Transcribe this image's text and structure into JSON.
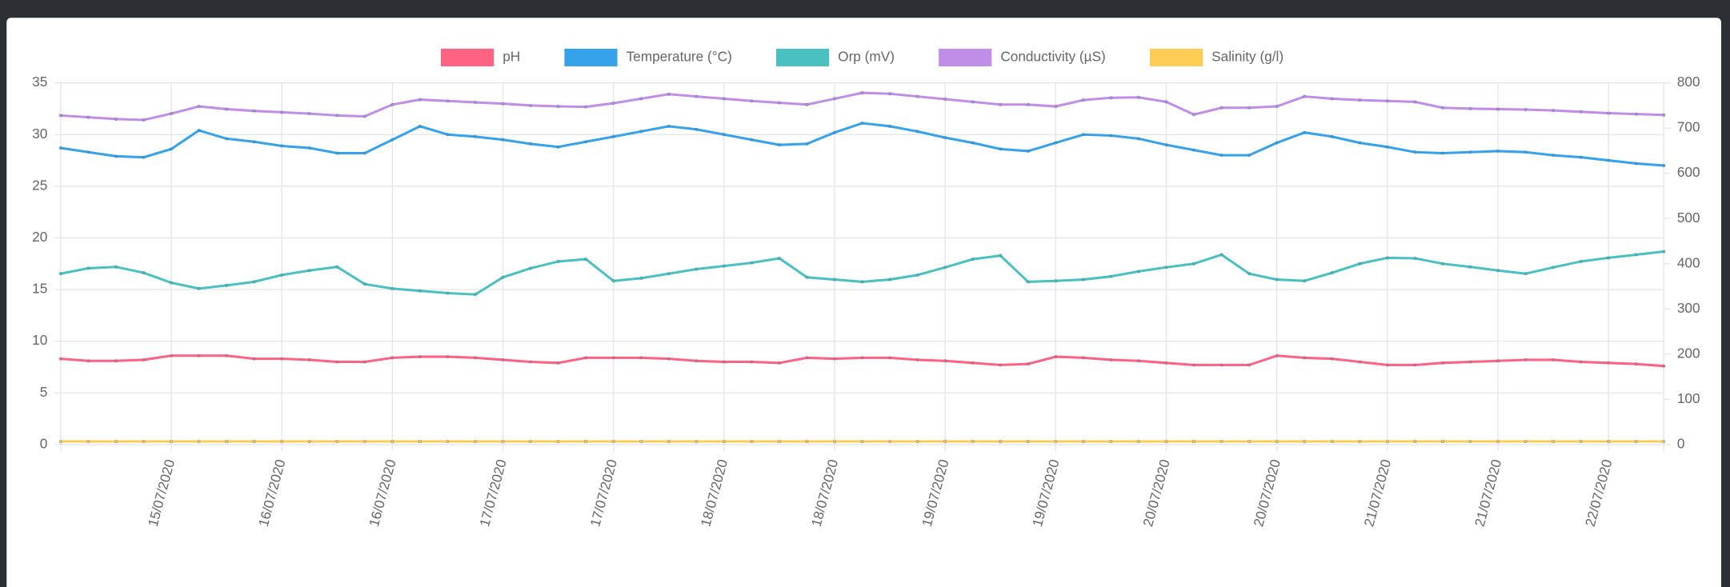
{
  "chart_data": {
    "type": "line",
    "legend": "top",
    "grid": true,
    "categories": [
      null,
      null,
      null,
      null,
      "15/07/2020",
      null,
      null,
      null,
      "16/07/2020",
      null,
      null,
      null,
      "16/07/2020",
      null,
      null,
      null,
      "17/07/2020",
      null,
      null,
      null,
      "17/07/2020",
      null,
      null,
      null,
      "18/07/2020",
      null,
      null,
      null,
      "18/07/2020",
      null,
      null,
      null,
      "19/07/2020",
      null,
      null,
      null,
      "19/07/2020",
      null,
      null,
      null,
      "20/07/2020",
      null,
      null,
      null,
      "20/07/2020",
      null,
      null,
      null,
      "21/07/2020",
      null,
      null,
      null,
      "21/07/2020",
      null,
      null,
      null,
      "22/07/2020",
      null,
      null
    ],
    "ylim": [
      0,
      35
    ],
    "yticks": [
      0,
      5,
      10,
      15,
      20,
      25,
      30,
      35
    ],
    "y2lim": [
      0,
      800
    ],
    "y2ticks": [
      0,
      100,
      200,
      300,
      400,
      500,
      600,
      700,
      800
    ],
    "series": [
      {
        "name": "pH",
        "color": "#ff6384",
        "values": [
          8.3,
          8.1,
          8.1,
          8.2,
          8.6,
          8.6,
          8.6,
          8.3,
          8.3,
          8.2,
          8.0,
          8.0,
          8.4,
          8.5,
          8.5,
          8.4,
          8.2,
          8.0,
          7.9,
          8.4,
          8.4,
          8.4,
          8.3,
          8.1,
          8.0,
          8.0,
          7.9,
          8.4,
          8.3,
          8.4,
          8.4,
          8.2,
          8.1,
          7.9,
          7.7,
          7.8,
          8.5,
          8.4,
          8.2,
          8.1,
          7.9,
          7.7,
          7.7,
          7.7,
          8.6,
          8.4,
          8.3,
          8.0,
          7.7,
          7.7,
          7.9,
          8.0,
          8.1,
          8.2,
          8.2,
          8.0,
          7.9,
          7.8,
          7.6
        ]
      },
      {
        "name": "Temperature (°C)",
        "color": "#36a2eb",
        "values": [
          28.7,
          28.3,
          27.9,
          27.8,
          28.6,
          30.4,
          29.6,
          29.3,
          28.9,
          28.7,
          28.2,
          28.2,
          29.5,
          30.8,
          30.0,
          29.8,
          29.5,
          29.1,
          28.8,
          29.3,
          29.8,
          30.3,
          30.8,
          30.5,
          30.0,
          29.5,
          29.0,
          29.1,
          30.2,
          31.1,
          30.8,
          30.3,
          29.7,
          29.2,
          28.6,
          28.4,
          29.2,
          30.0,
          29.9,
          29.6,
          29.0,
          28.5,
          28.0,
          28.0,
          29.2,
          30.2,
          29.8,
          29.2,
          28.8,
          28.3,
          28.2,
          28.3,
          28.4,
          28.3,
          28.0,
          27.8,
          27.5,
          27.2,
          27.0
        ]
      },
      {
        "name": "Orp (mV)",
        "color": "#4bc0c0",
        "axis": "y2",
        "values": [
          378,
          390,
          393,
          380,
          358,
          345,
          352,
          360,
          375,
          385,
          393,
          355,
          345,
          340,
          335,
          332,
          370,
          390,
          405,
          410,
          362,
          368,
          378,
          388,
          395,
          402,
          412,
          370,
          365,
          360,
          365,
          375,
          392,
          410,
          418,
          360,
          362,
          365,
          372,
          383,
          392,
          400,
          420,
          378,
          365,
          362,
          380,
          400,
          413,
          412,
          400,
          393,
          385,
          378,
          392,
          405,
          413,
          420,
          427
        ]
      },
      {
        "name": "Conductivity (µS)",
        "color": "#c08ee6",
        "axis": "y2",
        "values": [
          728,
          724,
          720,
          718,
          732,
          748,
          742,
          738,
          735,
          732,
          728,
          726,
          752,
          763,
          760,
          757,
          754,
          750,
          748,
          747,
          755,
          765,
          775,
          770,
          765,
          760,
          756,
          752,
          765,
          778,
          776,
          770,
          764,
          758,
          752,
          752,
          748,
          762,
          767,
          768,
          758,
          730,
          745,
          745,
          748,
          770,
          765,
          762,
          760,
          758,
          745,
          743,
          742,
          741,
          739,
          736,
          733,
          731,
          729
        ]
      },
      {
        "name": "Salinity (g/l)",
        "color": "#ffcd56",
        "values": [
          0.3,
          0.3,
          0.3,
          0.3,
          0.3,
          0.3,
          0.3,
          0.3,
          0.3,
          0.3,
          0.3,
          0.3,
          0.3,
          0.3,
          0.3,
          0.3,
          0.3,
          0.3,
          0.3,
          0.3,
          0.3,
          0.3,
          0.3,
          0.3,
          0.3,
          0.3,
          0.3,
          0.3,
          0.3,
          0.3,
          0.3,
          0.3,
          0.3,
          0.3,
          0.3,
          0.3,
          0.3,
          0.3,
          0.3,
          0.3,
          0.3,
          0.3,
          0.3,
          0.3,
          0.3,
          0.3,
          0.3,
          0.3,
          0.3,
          0.3,
          0.3,
          0.3,
          0.3,
          0.3,
          0.3,
          0.3,
          0.3,
          0.3,
          0.3
        ]
      }
    ]
  }
}
